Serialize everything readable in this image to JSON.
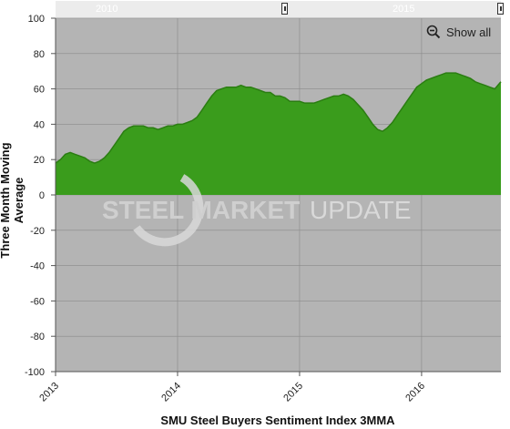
{
  "navigator": {
    "labels": [
      "2010",
      "2015"
    ],
    "handle_left_label": "",
    "handle_right_label": ""
  },
  "controls": {
    "show_all_label": "Show all"
  },
  "watermark": {
    "text_bold": "STEEL MARKET",
    "text_light": "UPDATE"
  },
  "colors": {
    "plot_bg": "#b4b4b4",
    "fill": "#3a9c1c",
    "line": "#2b7d12",
    "grid": "#8a8a8a"
  },
  "chart_data": {
    "type": "area",
    "title": "",
    "xlabel": "SMU Steel Buyers Sentiment Index 3MMA",
    "ylabel": "Three Month Moving Average",
    "ylim": [
      -100,
      100
    ],
    "yticks": [
      100,
      80,
      60,
      40,
      20,
      0,
      -20,
      -40,
      -60,
      -80,
      -100
    ],
    "xlim": [
      2013.0,
      2016.65
    ],
    "xticks": [
      2013,
      2014,
      2015,
      2016
    ],
    "grid": true,
    "series": [
      {
        "x": [
          2013.0,
          2013.04,
          2013.08,
          2013.12,
          2013.16,
          2013.2,
          2013.24,
          2013.28,
          2013.32,
          2013.36,
          2013.4,
          2013.44,
          2013.48,
          2013.52,
          2013.56,
          2013.6,
          2013.64,
          2013.68,
          2013.72,
          2013.76,
          2013.8,
          2013.84,
          2013.88,
          2013.92,
          2013.96,
          2014.0,
          2014.04,
          2014.08,
          2014.12,
          2014.16,
          2014.2,
          2014.24,
          2014.28,
          2014.32,
          2014.36,
          2014.4,
          2014.44,
          2014.48,
          2014.52,
          2014.56,
          2014.6,
          2014.64,
          2014.68,
          2014.72,
          2014.76,
          2014.8,
          2014.84,
          2014.88,
          2014.92,
          2014.96,
          2015.0,
          2015.04,
          2015.08,
          2015.12,
          2015.16,
          2015.2,
          2015.24,
          2015.28,
          2015.32,
          2015.36,
          2015.4,
          2015.44,
          2015.48,
          2015.52,
          2015.56,
          2015.6,
          2015.64,
          2015.68,
          2015.72,
          2015.76,
          2015.8,
          2015.84,
          2015.88,
          2015.92,
          2015.96,
          2016.0,
          2016.04,
          2016.08,
          2016.12,
          2016.16,
          2016.2,
          2016.24,
          2016.28,
          2016.32,
          2016.36,
          2016.4,
          2016.44,
          2016.48,
          2016.52,
          2016.56,
          2016.6,
          2016.65
        ],
        "values": [
          18,
          20,
          23,
          24,
          23,
          22,
          21,
          19,
          18,
          19,
          21,
          24,
          28,
          32,
          36,
          38,
          39,
          39,
          39,
          38,
          38,
          37,
          38,
          39,
          39,
          40,
          40,
          41,
          42,
          44,
          48,
          52,
          56,
          59,
          60,
          61,
          61,
          61,
          62,
          61,
          61,
          60,
          59,
          58,
          58,
          56,
          56,
          55,
          53,
          53,
          53,
          52,
          52,
          52,
          53,
          54,
          55,
          56,
          56,
          57,
          56,
          54,
          51,
          48,
          44,
          40,
          37,
          36,
          38,
          41,
          45,
          49,
          53,
          57,
          61,
          63,
          65,
          66,
          67,
          68,
          69,
          69,
          69,
          68,
          67,
          66,
          64,
          63,
          62,
          61,
          60,
          64
        ]
      }
    ]
  }
}
